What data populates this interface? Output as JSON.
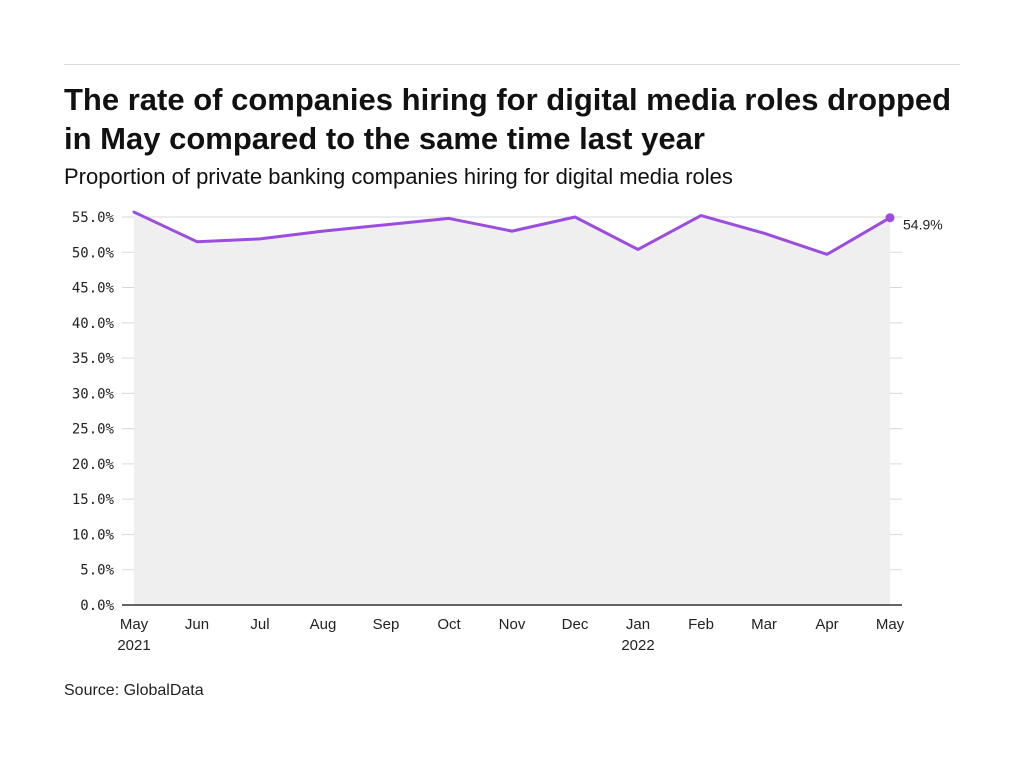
{
  "title": "The rate of companies hiring for digital media roles dropped in May compared to the same time last year",
  "subtitle": "Proportion of private banking companies hiring for digital media roles",
  "source": "Source: GlobalData",
  "colors": {
    "line": "#9b4de0",
    "plot_bg": "#efefef",
    "grid": "#d9d9d9",
    "axis": "#333333"
  },
  "chart_data": {
    "type": "area",
    "title": "The rate of companies hiring for digital media roles dropped in May compared to the same time last year",
    "subtitle": "Proportion of private banking companies hiring for digital media roles",
    "xlabel": "",
    "ylabel": "",
    "categories": [
      "May 2021",
      "Jun 2021",
      "Jul 2021",
      "Aug 2021",
      "Sep 2021",
      "Oct 2021",
      "Nov 2021",
      "Dec 2021",
      "Jan 2022",
      "Feb 2022",
      "Mar 2022",
      "Apr 2022",
      "May 2022"
    ],
    "x_tick_labels": [
      [
        "May",
        "2021"
      ],
      [
        "Jun"
      ],
      [
        "Jul"
      ],
      [
        "Aug"
      ],
      [
        "Sep"
      ],
      [
        "Oct"
      ],
      [
        "Nov"
      ],
      [
        "Dec"
      ],
      [
        "Jan",
        "2022"
      ],
      [
        "Feb"
      ],
      [
        "Mar"
      ],
      [
        "Apr"
      ],
      [
        "May"
      ]
    ],
    "series": [
      {
        "values": [
          55.7,
          51.5,
          51.9,
          53.0,
          53.9,
          54.8,
          53.0,
          55.0,
          50.4,
          55.2,
          52.7,
          49.7,
          54.9
        ]
      }
    ],
    "ylim": [
      0,
      55
    ],
    "y_ticks": [
      0,
      5,
      10,
      15,
      20,
      25,
      30,
      35,
      40,
      45,
      50,
      55
    ],
    "y_tick_labels": [
      "0.0%",
      "5.0%",
      "10.0%",
      "15.0%",
      "20.0%",
      "25.0%",
      "30.0%",
      "35.0%",
      "40.0%",
      "45.0%",
      "50.0%",
      "55.0%"
    ],
    "grid": true,
    "end_label": "54.9%"
  }
}
